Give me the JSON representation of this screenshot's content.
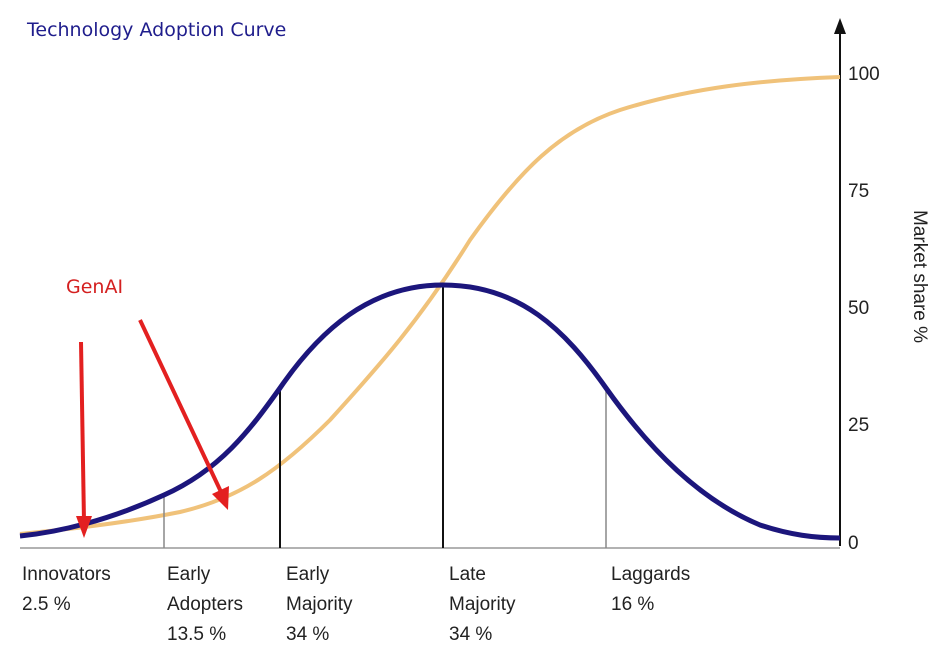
{
  "title": "Technology Adoption Curve",
  "annotation": {
    "label": "GenAI",
    "color": "#d42020"
  },
  "y_axis": {
    "label": "Market share %",
    "ticks": [
      "100",
      "75",
      "50",
      "25",
      "0"
    ]
  },
  "segments": [
    {
      "line1": "Innovators",
      "line2": "2.5 %",
      "line3": ""
    },
    {
      "line1": "Early",
      "line2": "Adopters",
      "line3": "13.5 %"
    },
    {
      "line1": "Early",
      "line2": "Majority",
      "line3": "34 %"
    },
    {
      "line1": "Late",
      "line2": "Majority",
      "line3": "34 %"
    },
    {
      "line1": "Laggards",
      "line2": "16 %",
      "line3": ""
    }
  ],
  "colors": {
    "bell_curve": "#1c167c",
    "s_curve": "#f0c27a",
    "arrow": "#e32020",
    "title": "#1f1d8c"
  }
}
